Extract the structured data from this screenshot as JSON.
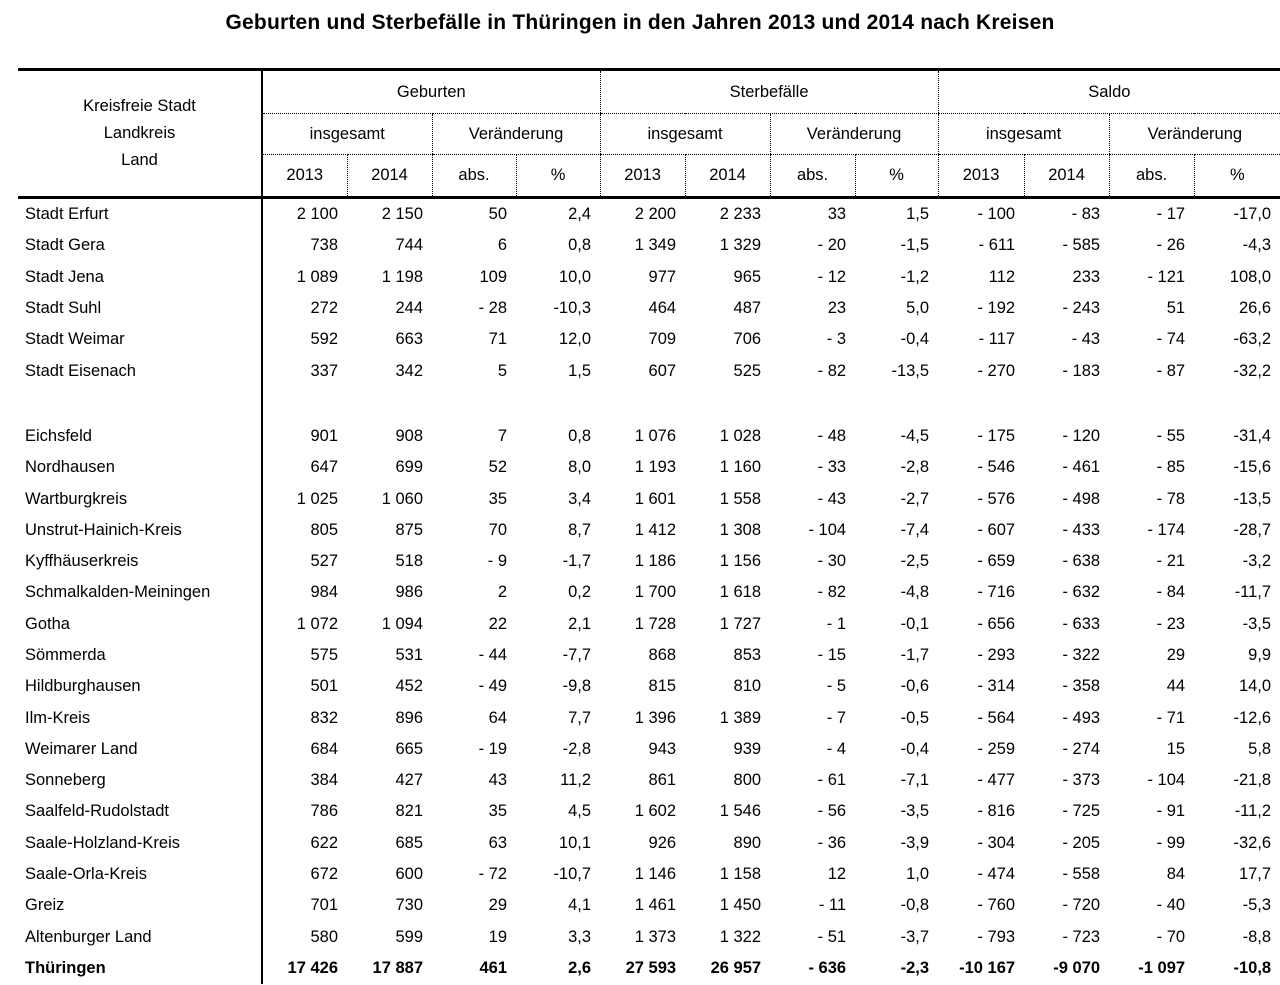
{
  "title": "Geburten und Sterbefälle in Thüringen in den Jahren 2013 und 2014 nach Kreisen",
  "colors": {
    "text": "#000000",
    "background": "#ffffff",
    "lines": "#000000"
  },
  "table": {
    "row_header_lines": [
      "Kreisfreie Stadt",
      "Landkreis",
      "Land"
    ],
    "groups": [
      {
        "label": "Geburten"
      },
      {
        "label": "Sterbefälle"
      },
      {
        "label": "Saldo"
      }
    ],
    "subheaders": [
      "insgesamt",
      "Veränderung",
      "insgesamt",
      "Veränderung",
      "insgesamt",
      "Veränderung"
    ],
    "col_headers": [
      "2013",
      "2014",
      "abs.",
      "%",
      "2013",
      "2014",
      "abs.",
      "%",
      "2013",
      "2014",
      "abs.",
      "%"
    ],
    "rows": [
      {
        "name": "Stadt Erfurt",
        "values": [
          "2 100",
          "2 150",
          "50",
          "2,4",
          "2 200",
          "2 233",
          "33",
          "1,5",
          "- 100",
          "- 83",
          "- 17",
          "-17,0"
        ]
      },
      {
        "name": "Stadt Gera",
        "values": [
          "738",
          "744",
          "6",
          "0,8",
          "1 349",
          "1 329",
          "- 20",
          "-1,5",
          "- 611",
          "- 585",
          "- 26",
          "-4,3"
        ]
      },
      {
        "name": "Stadt Jena",
        "values": [
          "1 089",
          "1 198",
          "109",
          "10,0",
          "977",
          "965",
          "- 12",
          "-1,2",
          "112",
          "233",
          "- 121",
          "108,0"
        ]
      },
      {
        "name": "Stadt Suhl",
        "values": [
          "272",
          "244",
          "- 28",
          "-10,3",
          "464",
          "487",
          "23",
          "5,0",
          "- 192",
          "- 243",
          "51",
          "26,6"
        ]
      },
      {
        "name": "Stadt Weimar",
        "values": [
          "592",
          "663",
          "71",
          "12,0",
          "709",
          "706",
          "- 3",
          "-0,4",
          "- 117",
          "- 43",
          "- 74",
          "-63,2"
        ]
      },
      {
        "name": "Stadt Eisenach",
        "values": [
          "337",
          "342",
          "5",
          "1,5",
          "607",
          "525",
          "- 82",
          "-13,5",
          "- 270",
          "- 183",
          "- 87",
          "-32,2"
        ]
      },
      {
        "spacer": true
      },
      {
        "name": "Eichsfeld",
        "values": [
          "901",
          "908",
          "7",
          "0,8",
          "1 076",
          "1 028",
          "- 48",
          "-4,5",
          "- 175",
          "- 120",
          "- 55",
          "-31,4"
        ]
      },
      {
        "name": "Nordhausen",
        "values": [
          "647",
          "699",
          "52",
          "8,0",
          "1 193",
          "1 160",
          "- 33",
          "-2,8",
          "- 546",
          "- 461",
          "- 85",
          "-15,6"
        ]
      },
      {
        "name": "Wartburgkreis",
        "values": [
          "1 025",
          "1 060",
          "35",
          "3,4",
          "1 601",
          "1 558",
          "- 43",
          "-2,7",
          "- 576",
          "- 498",
          "- 78",
          "-13,5"
        ]
      },
      {
        "name": "Unstrut-Hainich-Kreis",
        "values": [
          "805",
          "875",
          "70",
          "8,7",
          "1 412",
          "1 308",
          "- 104",
          "-7,4",
          "- 607",
          "- 433",
          "- 174",
          "-28,7"
        ]
      },
      {
        "name": "Kyffhäuserkreis",
        "values": [
          "527",
          "518",
          "- 9",
          "-1,7",
          "1 186",
          "1 156",
          "- 30",
          "-2,5",
          "- 659",
          "- 638",
          "- 21",
          "-3,2"
        ]
      },
      {
        "name": "Schmalkalden-Meiningen",
        "values": [
          "984",
          "986",
          "2",
          "0,2",
          "1 700",
          "1 618",
          "- 82",
          "-4,8",
          "- 716",
          "- 632",
          "- 84",
          "-11,7"
        ]
      },
      {
        "name": "Gotha",
        "values": [
          "1 072",
          "1 094",
          "22",
          "2,1",
          "1 728",
          "1 727",
          "- 1",
          "-0,1",
          "- 656",
          "- 633",
          "- 23",
          "-3,5"
        ]
      },
      {
        "name": "Sömmerda",
        "values": [
          "575",
          "531",
          "- 44",
          "-7,7",
          "868",
          "853",
          "- 15",
          "-1,7",
          "- 293",
          "- 322",
          "29",
          "9,9"
        ]
      },
      {
        "name": "Hildburghausen",
        "values": [
          "501",
          "452",
          "- 49",
          "-9,8",
          "815",
          "810",
          "- 5",
          "-0,6",
          "- 314",
          "- 358",
          "44",
          "14,0"
        ]
      },
      {
        "name": "Ilm-Kreis",
        "values": [
          "832",
          "896",
          "64",
          "7,7",
          "1 396",
          "1 389",
          "- 7",
          "-0,5",
          "- 564",
          "- 493",
          "- 71",
          "-12,6"
        ]
      },
      {
        "name": "Weimarer Land",
        "values": [
          "684",
          "665",
          "- 19",
          "-2,8",
          "943",
          "939",
          "- 4",
          "-0,4",
          "- 259",
          "- 274",
          "15",
          "5,8"
        ]
      },
      {
        "name": "Sonneberg",
        "values": [
          "384",
          "427",
          "43",
          "11,2",
          "861",
          "800",
          "- 61",
          "-7,1",
          "- 477",
          "- 373",
          "- 104",
          "-21,8"
        ]
      },
      {
        "name": "Saalfeld-Rudolstadt",
        "values": [
          "786",
          "821",
          "35",
          "4,5",
          "1 602",
          "1 546",
          "- 56",
          "-3,5",
          "- 816",
          "- 725",
          "- 91",
          "-11,2"
        ]
      },
      {
        "name": "Saale-Holzland-Kreis",
        "values": [
          "622",
          "685",
          "63",
          "10,1",
          "926",
          "890",
          "- 36",
          "-3,9",
          "- 304",
          "- 205",
          "- 99",
          "-32,6"
        ]
      },
      {
        "name": "Saale-Orla-Kreis",
        "values": [
          "672",
          "600",
          "- 72",
          "-10,7",
          "1 146",
          "1 158",
          "12",
          "1,0",
          "- 474",
          "- 558",
          "84",
          "17,7"
        ]
      },
      {
        "name": "Greiz",
        "values": [
          "701",
          "730",
          "29",
          "4,1",
          "1 461",
          "1 450",
          "- 11",
          "-0,8",
          "- 760",
          "- 720",
          "- 40",
          "-5,3"
        ]
      },
      {
        "name": "Altenburger Land",
        "values": [
          "580",
          "599",
          "19",
          "3,3",
          "1 373",
          "1 322",
          "- 51",
          "-3,7",
          "- 793",
          "- 723",
          "- 70",
          "-8,8"
        ]
      },
      {
        "name": "Thüringen",
        "total": true,
        "values": [
          "17 426",
          "17 887",
          "461",
          "2,6",
          "27 593",
          "26 957",
          "- 636",
          "-2,3",
          "-10 167",
          "-9 070",
          "-1 097",
          "-10,8"
        ]
      }
    ]
  }
}
